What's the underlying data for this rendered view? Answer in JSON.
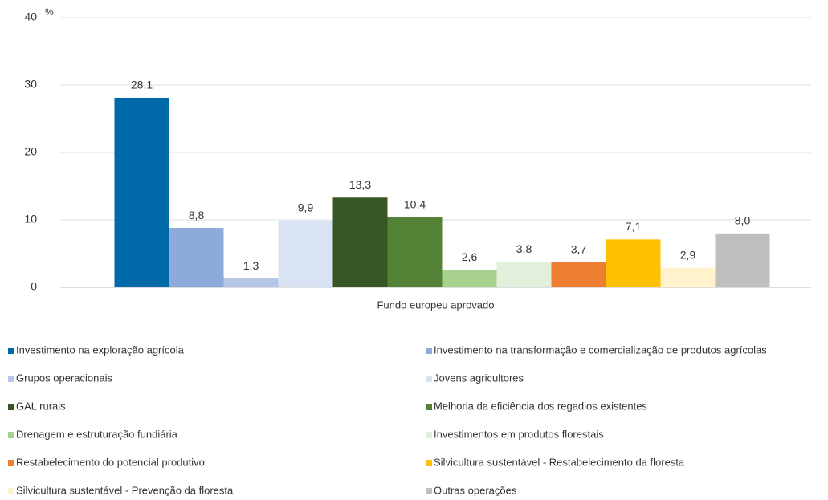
{
  "chart_data": {
    "type": "bar",
    "categories": [
      "Fundo europeu aprovado"
    ],
    "y_unit": "%",
    "ylim": [
      0,
      40
    ],
    "yticks": [
      0,
      10,
      20,
      30,
      40
    ],
    "grid": true,
    "series": [
      {
        "name": "Investimento na exploração agrícola",
        "color": "#0069a8",
        "values": [
          28.1
        ],
        "value_labels": [
          "28,1"
        ]
      },
      {
        "name": "Investimento na transformação e comercialização de produtos agrícolas",
        "color": "#8eaadb",
        "values": [
          8.8
        ],
        "value_labels": [
          "8,8"
        ]
      },
      {
        "name": "Grupos operacionais",
        "color": "#b4c6e7",
        "values": [
          1.3
        ],
        "value_labels": [
          "1,3"
        ]
      },
      {
        "name": "Jovens agricultores",
        "color": "#dae3f3",
        "values": [
          9.9
        ],
        "value_labels": [
          "9,9"
        ]
      },
      {
        "name": "GAL rurais",
        "color": "#375623",
        "values": [
          13.3
        ],
        "value_labels": [
          "13,3"
        ]
      },
      {
        "name": "Melhoria da eficiência dos regadios existentes",
        "color": "#538135",
        "values": [
          10.4
        ],
        "value_labels": [
          "10,4"
        ]
      },
      {
        "name": "Drenagem e estruturação fundiária",
        "color": "#a9d18e",
        "values": [
          2.6
        ],
        "value_labels": [
          "2,6"
        ]
      },
      {
        "name": "Investimentos em produtos florestais",
        "color": "#e2efda",
        "values": [
          3.8
        ],
        "value_labels": [
          "3,8"
        ]
      },
      {
        "name": "Restabelecimento do potencial produtivo",
        "color": "#ed7d31",
        "values": [
          3.7
        ],
        "value_labels": [
          "3,7"
        ]
      },
      {
        "name": "Silvicultura sustentável - Restabelecimento da floresta",
        "color": "#ffc000",
        "values": [
          7.1
        ],
        "value_labels": [
          "7,1"
        ]
      },
      {
        "name": "Silvicultura sustentável - Prevenção da floresta",
        "color": "#fff2cc",
        "values": [
          2.9
        ],
        "value_labels": [
          "2,9"
        ]
      },
      {
        "name": "Outras operações",
        "color": "#bfbfbf",
        "values": [
          8.0
        ],
        "value_labels": [
          "8,0"
        ]
      }
    ]
  }
}
